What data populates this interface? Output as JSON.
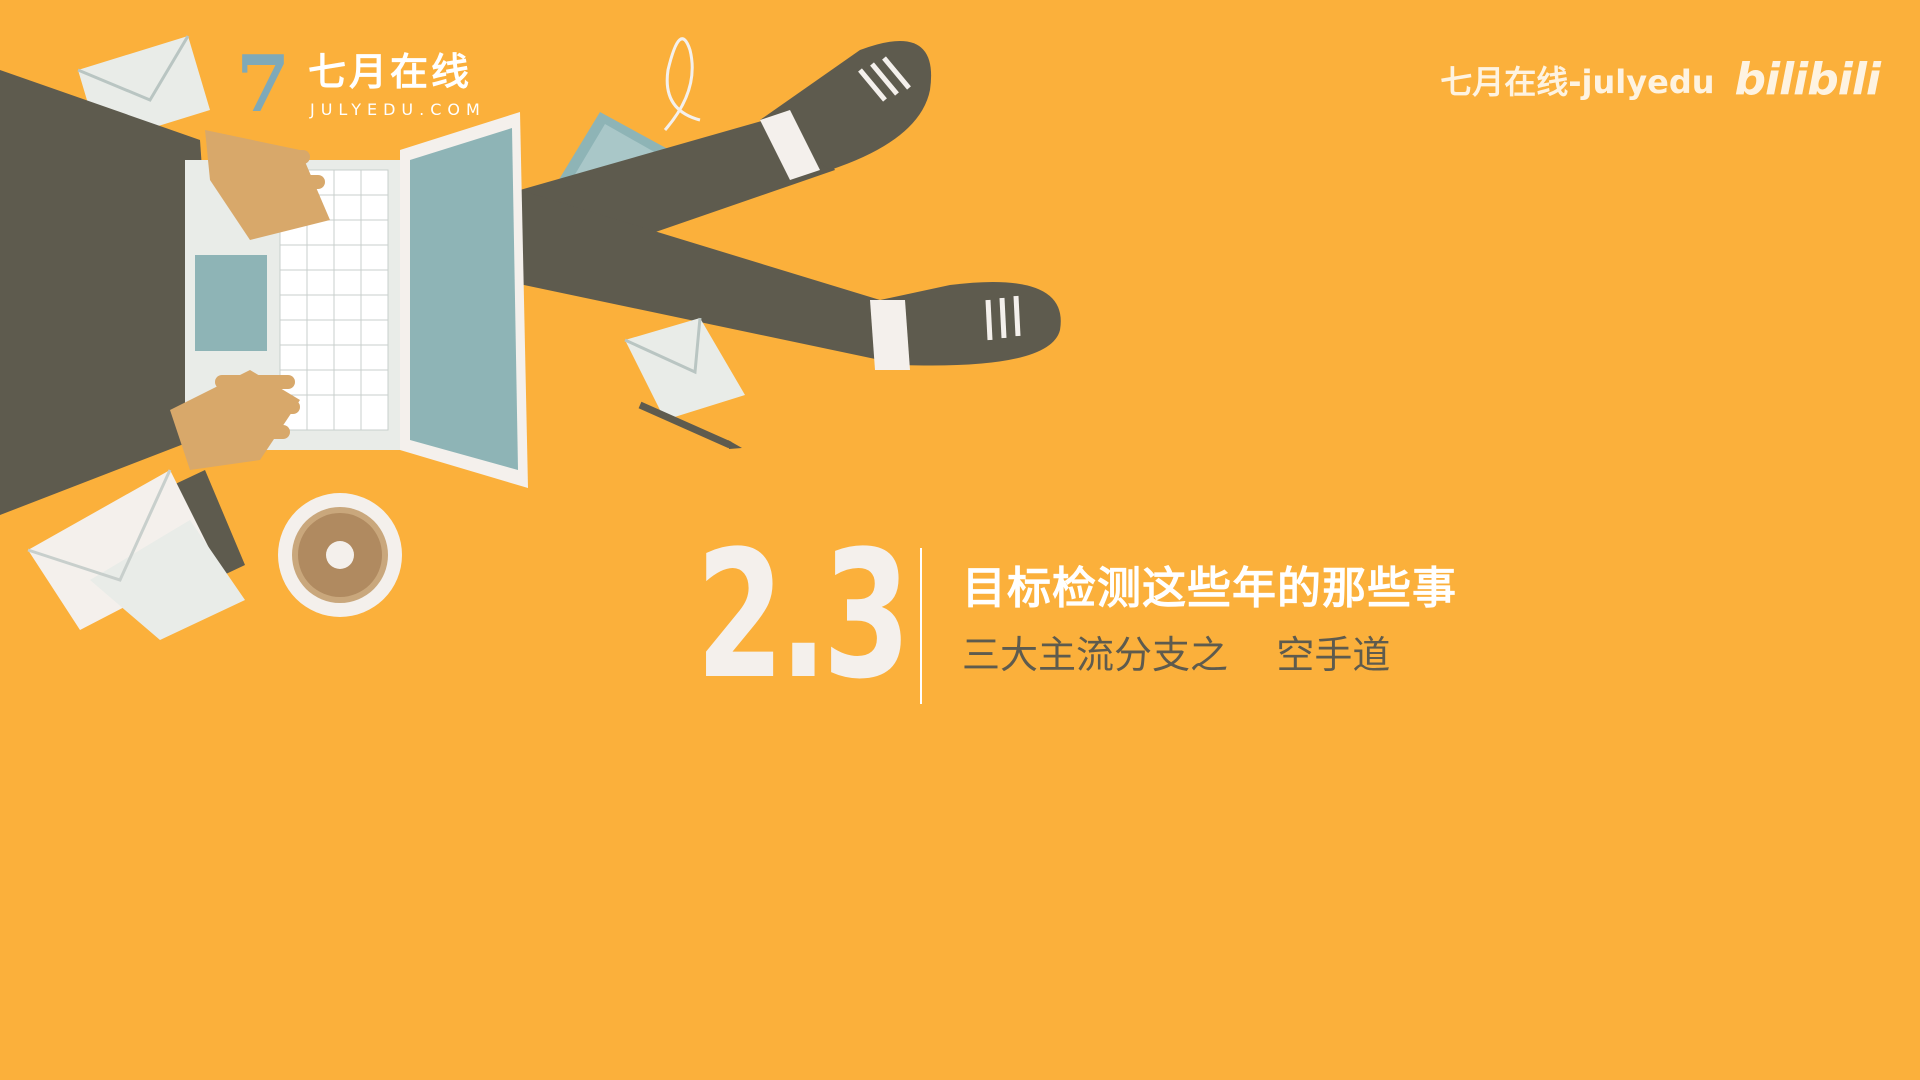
{
  "logo": {
    "mark": "7",
    "name_cn": "七月在线",
    "name_en": "JULYEDU.COM"
  },
  "watermark": {
    "text": "七月在线-julyedu",
    "platform": "bilibili"
  },
  "section": {
    "number": "2.3",
    "title": "目标检测这些年的那些事",
    "subtitle": "三大主流分支之    空手道"
  },
  "colors": {
    "background": "#FBB03B",
    "dark": "#5E5B4E",
    "light": "#F4F0EC",
    "screen": "#8EB4B6",
    "skin": "#D8A86A",
    "brand": "#7FA9B8"
  }
}
